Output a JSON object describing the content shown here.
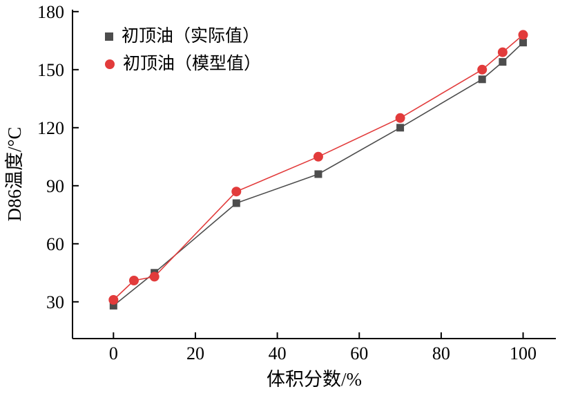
{
  "chart_data": {
    "type": "line",
    "title": "",
    "xlabel": "体积分数/%",
    "ylabel": "D86温度/°C",
    "xlim": [
      -10,
      108
    ],
    "ylim": [
      11,
      181
    ],
    "xticks": [
      0,
      20,
      40,
      60,
      80,
      100
    ],
    "yticks": [
      30,
      60,
      90,
      120,
      150,
      180
    ],
    "grid": false,
    "legend_position": "top-left-inside",
    "axis_color": "#000000",
    "series": [
      {
        "name": "初顶油（实际值）",
        "marker": "square",
        "color": "#4d4d4d",
        "x": [
          0,
          10,
          30,
          50,
          70,
          90,
          95,
          100
        ],
        "y": [
          28,
          45,
          81,
          96,
          120,
          145,
          154,
          164
        ]
      },
      {
        "name": "初顶油（模型值）",
        "marker": "circle",
        "color": "#e23b3b",
        "x": [
          0,
          5,
          10,
          30,
          50,
          70,
          90,
          95,
          100
        ],
        "y": [
          31,
          41,
          43,
          87,
          105,
          125,
          150,
          159,
          168
        ]
      }
    ]
  }
}
